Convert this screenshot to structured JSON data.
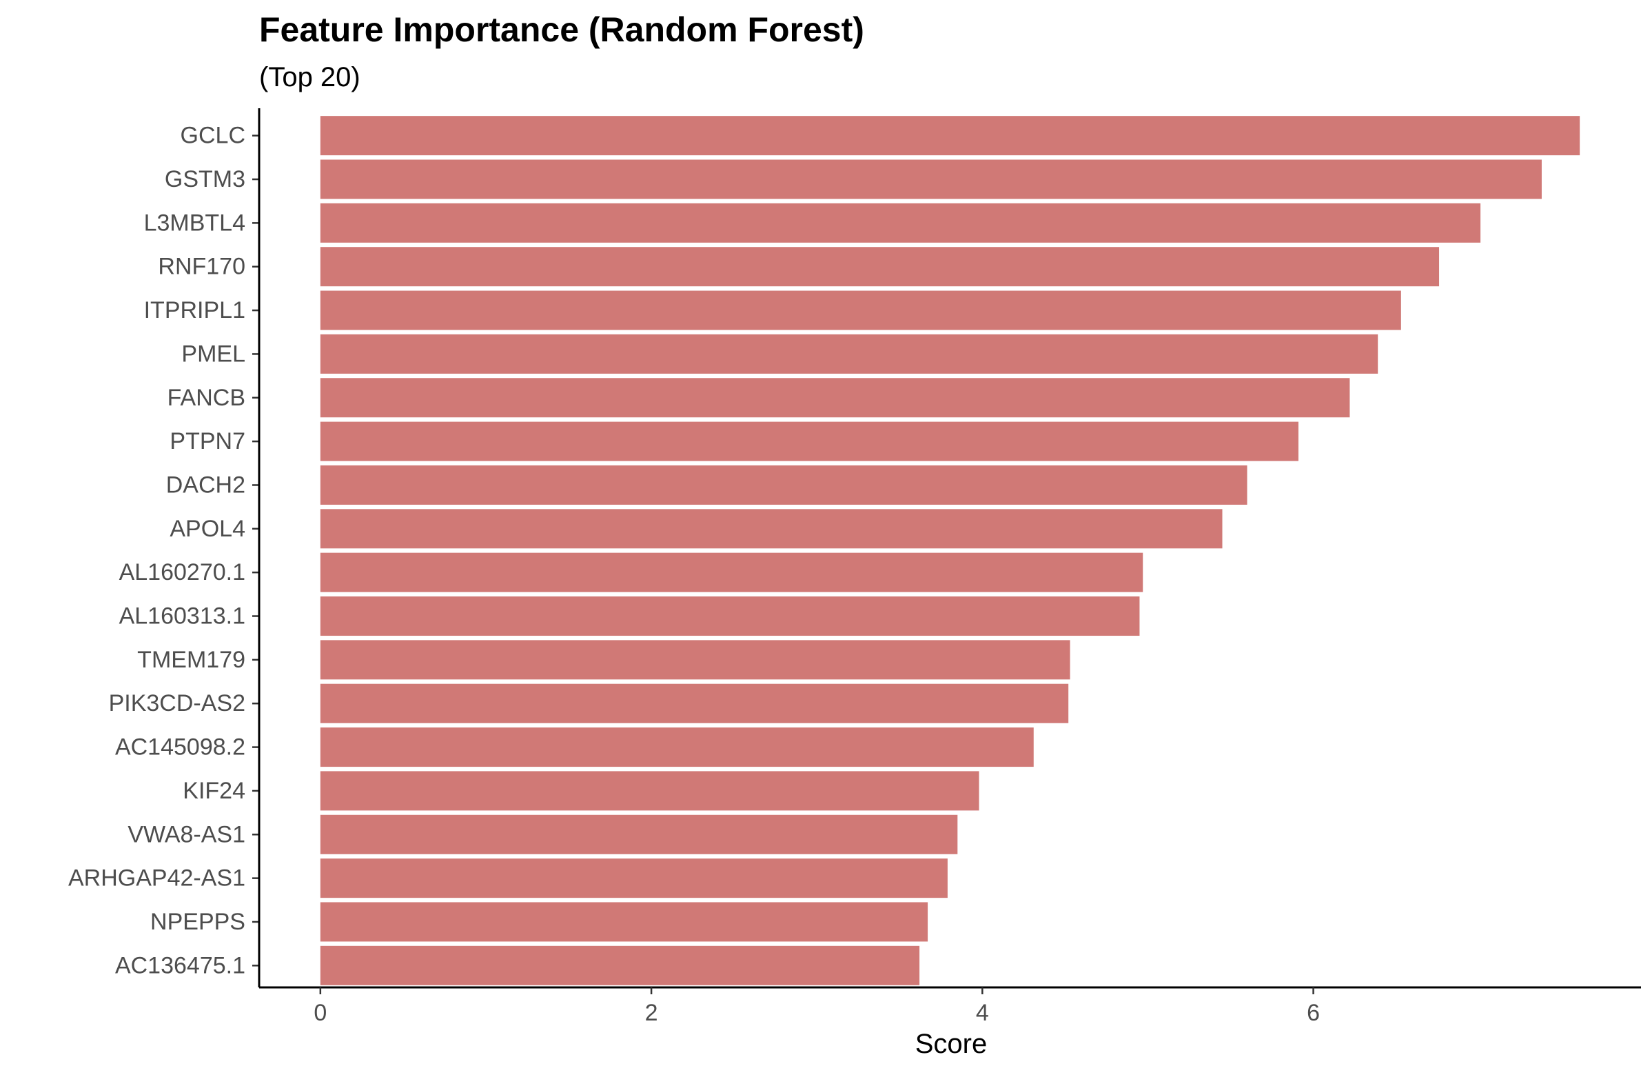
{
  "chart_data": {
    "type": "bar",
    "orientation": "horizontal",
    "title": "Feature Importance (Random Forest)",
    "subtitle": "(Top 20)",
    "xlabel": "Score",
    "ylabel": "",
    "categories": [
      "GCLC",
      "GSTM3",
      "L3MBTL4",
      "RNF170",
      "ITPRIPL1",
      "PMEL",
      "FANCB",
      "PTPN7",
      "DACH2",
      "APOL4",
      "AL160270.1",
      "AL160313.1",
      "TMEM179",
      "PIK3CD-AS2",
      "AC145098.2",
      "KIF24",
      "VWA8-AS1",
      "ARHGAP42-AS1",
      "NPEPPS",
      "AC136475.1"
    ],
    "values": [
      7.61,
      7.38,
      7.01,
      6.76,
      6.53,
      6.39,
      6.22,
      5.91,
      5.6,
      5.45,
      4.97,
      4.95,
      4.53,
      4.52,
      4.31,
      3.98,
      3.85,
      3.79,
      3.67,
      3.62
    ],
    "xticks": [
      0,
      2,
      4,
      6
    ],
    "xlim": [
      -0.37,
      7.98
    ],
    "grid": false,
    "legend": "none",
    "bar_color": "#d07976"
  }
}
